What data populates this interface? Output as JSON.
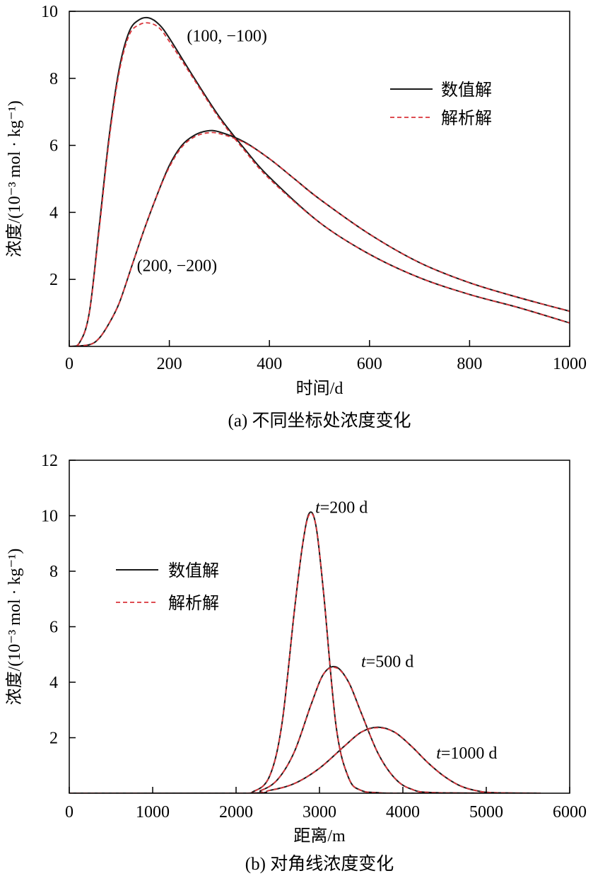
{
  "chart_data": [
    {
      "type": "line",
      "panel": "a",
      "caption": "(a) 不同坐标处浓度变化",
      "xlabel": "时间/d",
      "ylabel": "浓度/(10⁻³ mol · kg⁻¹)",
      "xlim": [
        0,
        1000
      ],
      "ylim": [
        0,
        10
      ],
      "xticks": [
        0,
        200,
        400,
        600,
        800,
        1000
      ],
      "yticks": [
        2,
        4,
        6,
        8,
        10
      ],
      "legend": {
        "placement": "top-right",
        "entries": [
          "数值解",
          "解析解"
        ]
      },
      "colors": {
        "numerical": "#1a1a1a",
        "analytical": "#d9343a"
      },
      "series": [
        {
          "name": "数值解",
          "label": "(100, −100)",
          "style": "solid",
          "x": [
            0,
            20,
            40,
            60,
            80,
            100,
            120,
            140,
            160,
            180,
            200,
            250,
            300,
            350,
            400,
            500,
            600,
            700,
            800,
            900,
            1000
          ],
          "values": [
            0.0,
            0.1,
            1.0,
            3.6,
            6.3,
            8.3,
            9.4,
            9.75,
            9.8,
            9.6,
            9.2,
            8.0,
            6.85,
            5.9,
            5.05,
            3.7,
            2.75,
            2.05,
            1.55,
            1.15,
            0.7
          ]
        },
        {
          "name": "解析解",
          "label": "(100, −100)",
          "style": "dashed",
          "x": [
            0,
            20,
            40,
            60,
            80,
            100,
            120,
            140,
            160,
            180,
            200,
            250,
            300,
            350,
            400,
            500,
            600,
            700,
            800,
            900,
            1000
          ],
          "values": [
            0.0,
            0.1,
            1.0,
            3.5,
            6.2,
            8.2,
            9.3,
            9.6,
            9.65,
            9.5,
            9.1,
            7.95,
            6.8,
            5.85,
            5.0,
            3.7,
            2.75,
            2.05,
            1.55,
            1.15,
            0.7
          ]
        },
        {
          "name": "数值解",
          "label": "(200, −200)",
          "style": "solid",
          "x": [
            0,
            40,
            60,
            80,
            100,
            125,
            150,
            175,
            200,
            225,
            250,
            275,
            300,
            350,
            400,
            450,
            500,
            600,
            700,
            800,
            900,
            1000
          ],
          "values": [
            0.0,
            0.05,
            0.25,
            0.7,
            1.3,
            2.4,
            3.5,
            4.5,
            5.4,
            6.0,
            6.3,
            6.43,
            6.4,
            6.1,
            5.6,
            5.0,
            4.4,
            3.35,
            2.5,
            1.9,
            1.45,
            1.05
          ]
        },
        {
          "name": "解析解",
          "label": "(200, −200)",
          "style": "dashed",
          "x": [
            0,
            40,
            60,
            80,
            100,
            125,
            150,
            175,
            200,
            225,
            250,
            275,
            300,
            350,
            400,
            450,
            500,
            600,
            700,
            800,
            900,
            1000
          ],
          "values": [
            0.0,
            0.05,
            0.25,
            0.7,
            1.3,
            2.4,
            3.5,
            4.5,
            5.35,
            5.95,
            6.25,
            6.37,
            6.35,
            6.08,
            5.6,
            5.0,
            4.4,
            3.35,
            2.5,
            1.9,
            1.45,
            1.05
          ]
        }
      ],
      "annotations": [
        {
          "text": "(100, −100)",
          "x": 235,
          "y": 9.1
        },
        {
          "text": "(200, −200)",
          "x": 135,
          "y": 2.25
        }
      ]
    },
    {
      "type": "line",
      "panel": "b",
      "caption": "(b) 对角线浓度变化",
      "xlabel": "距离/m",
      "ylabel": "浓度/(10⁻³ mol · kg⁻¹)",
      "xlim": [
        0,
        6000
      ],
      "ylim": [
        0,
        12
      ],
      "xticks": [
        0,
        1000,
        2000,
        3000,
        4000,
        5000,
        6000
      ],
      "yticks": [
        2,
        4,
        6,
        8,
        10,
        12
      ],
      "legend": {
        "placement": "center-left",
        "entries": [
          "数值解",
          "解析解"
        ]
      },
      "colors": {
        "numerical": "#1a1a1a",
        "analytical": "#d9343a"
      },
      "series": [
        {
          "name": "数值解",
          "label": "t=200 d",
          "style": "solid",
          "x": [
            0,
            2000,
            2200,
            2400,
            2550,
            2700,
            2800,
            2880,
            2960,
            3050,
            3200,
            3350,
            3500,
            3700,
            4000,
            5650
          ],
          "values": [
            0,
            0.0,
            0.05,
            0.6,
            2.5,
            6.6,
            9.0,
            10.1,
            9.6,
            7.2,
            2.4,
            0.55,
            0.1,
            0.02,
            0,
            0
          ]
        },
        {
          "name": "解析解",
          "label": "t=200 d",
          "style": "dashed",
          "x": [
            0,
            2000,
            2200,
            2400,
            2550,
            2700,
            2800,
            2880,
            2960,
            3050,
            3200,
            3350,
            3500,
            3700,
            4000,
            5650
          ],
          "values": [
            0,
            0.0,
            0.05,
            0.6,
            2.5,
            6.6,
            9.0,
            10.05,
            9.6,
            7.2,
            2.4,
            0.55,
            0.1,
            0.02,
            0,
            0
          ]
        },
        {
          "name": "数值解",
          "label": "t=500 d",
          "style": "solid",
          "x": [
            0,
            2100,
            2300,
            2500,
            2700,
            2900,
            3050,
            3200,
            3350,
            3500,
            3700,
            3900,
            4100,
            4400,
            5650
          ],
          "values": [
            0,
            0.0,
            0.1,
            0.5,
            1.5,
            3.2,
            4.3,
            4.55,
            4.0,
            2.9,
            1.45,
            0.55,
            0.15,
            0.02,
            0
          ]
        },
        {
          "name": "解析解",
          "label": "t=500 d",
          "style": "dashed",
          "x": [
            0,
            2100,
            2300,
            2500,
            2700,
            2900,
            3050,
            3200,
            3350,
            3500,
            3700,
            3900,
            4100,
            4400,
            5650
          ],
          "values": [
            0,
            0.0,
            0.1,
            0.5,
            1.5,
            3.2,
            4.3,
            4.52,
            4.0,
            2.9,
            1.45,
            0.55,
            0.15,
            0.02,
            0
          ]
        },
        {
          "name": "数值解",
          "label": "t=1000 d",
          "style": "solid",
          "x": [
            0,
            2100,
            2400,
            2700,
            3000,
            3300,
            3500,
            3700,
            3900,
            4100,
            4300,
            4500,
            4700,
            4900,
            5100,
            5650
          ],
          "values": [
            0,
            0.0,
            0.1,
            0.35,
            0.9,
            1.7,
            2.2,
            2.38,
            2.2,
            1.7,
            1.1,
            0.6,
            0.25,
            0.08,
            0.02,
            0
          ]
        },
        {
          "name": "解析解",
          "label": "t=1000 d",
          "style": "dashed",
          "x": [
            0,
            2100,
            2400,
            2700,
            3000,
            3300,
            3500,
            3700,
            3900,
            4100,
            4300,
            4500,
            4700,
            4900,
            5100,
            5650
          ],
          "values": [
            0,
            0.0,
            0.1,
            0.35,
            0.9,
            1.7,
            2.2,
            2.36,
            2.2,
            1.7,
            1.1,
            0.6,
            0.25,
            0.08,
            0.02,
            0
          ]
        }
      ],
      "annotations": [
        {
          "italic": "t",
          "text": "=200 d",
          "x": 2950,
          "y": 10.1
        },
        {
          "italic": "t",
          "text": "=500 d",
          "x": 3500,
          "y": 4.55
        },
        {
          "italic": "t",
          "text": "=1000 d",
          "x": 4400,
          "y": 1.25
        }
      ]
    }
  ]
}
